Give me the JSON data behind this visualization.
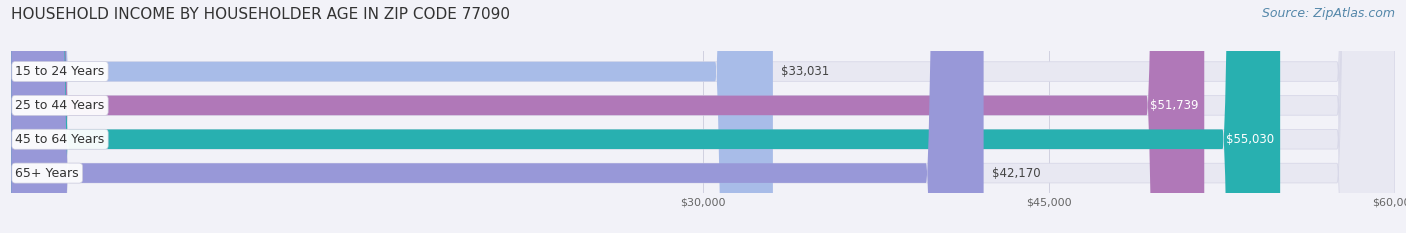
{
  "title": "HOUSEHOLD INCOME BY HOUSEHOLDER AGE IN ZIP CODE 77090",
  "source": "Source: ZipAtlas.com",
  "categories": [
    "15 to 24 Years",
    "25 to 44 Years",
    "45 to 64 Years",
    "65+ Years"
  ],
  "values": [
    33031,
    51739,
    55030,
    42170
  ],
  "bar_colors": [
    "#a8bce8",
    "#b078b8",
    "#28b0b0",
    "#9898d8"
  ],
  "label_texts": [
    "$33,031",
    "$51,739",
    "$55,030",
    "$42,170"
  ],
  "xmin": 0,
  "xmax": 60000,
  "xticks": [
    30000,
    45000,
    60000
  ],
  "xticklabels": [
    "$30,000",
    "$45,000",
    "$60,000"
  ],
  "figsize": [
    14.06,
    2.33
  ],
  "dpi": 100,
  "bg_color": "#f2f2f8",
  "bar_height": 0.58,
  "title_fontsize": 11,
  "source_fontsize": 9,
  "label_fontsize": 8.5,
  "category_fontsize": 9,
  "bar_bg_color": "#e8e8f2",
  "bar_bg_edge_color": "#d8d8e8"
}
